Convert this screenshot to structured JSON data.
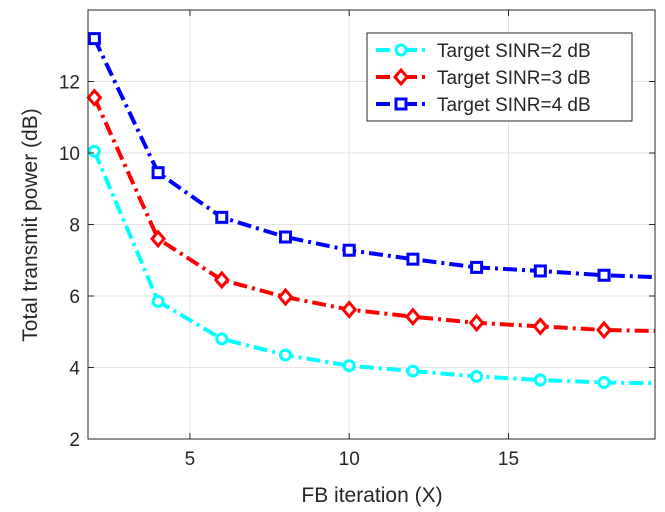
{
  "chart_data": {
    "type": "line",
    "title": "",
    "xlabel": "FB iteration (X)",
    "ylabel": "Total transmit power (dB)",
    "xlim": [
      1.8,
      19.6
    ],
    "ylim": [
      2,
      14
    ],
    "xticks": [
      5,
      10,
      15
    ],
    "yticks": [
      2,
      4,
      6,
      8,
      10,
      12
    ],
    "grid": true,
    "legend_position": "top-right",
    "x": [
      2,
      4,
      6,
      8,
      10,
      12,
      14,
      16,
      18
    ],
    "series": [
      {
        "name": "Target SINR=2 dB",
        "color": "#00FFFF",
        "marker": "circle",
        "values": [
          10.05,
          5.85,
          4.8,
          4.35,
          4.05,
          3.9,
          3.75,
          3.65,
          3.58
        ],
        "end_value": 3.56
      },
      {
        "name": "Target SINR=3 dB",
        "color": "#FF0000",
        "marker": "diamond",
        "values": [
          11.55,
          7.6,
          6.45,
          5.97,
          5.62,
          5.42,
          5.25,
          5.15,
          5.05
        ],
        "end_value": 5.02
      },
      {
        "name": "Target SINR=4 dB",
        "color": "#0000FF",
        "marker": "square",
        "values": [
          13.2,
          9.45,
          8.2,
          7.65,
          7.28,
          7.03,
          6.8,
          6.7,
          6.58
        ],
        "end_value": 6.53
      }
    ]
  }
}
